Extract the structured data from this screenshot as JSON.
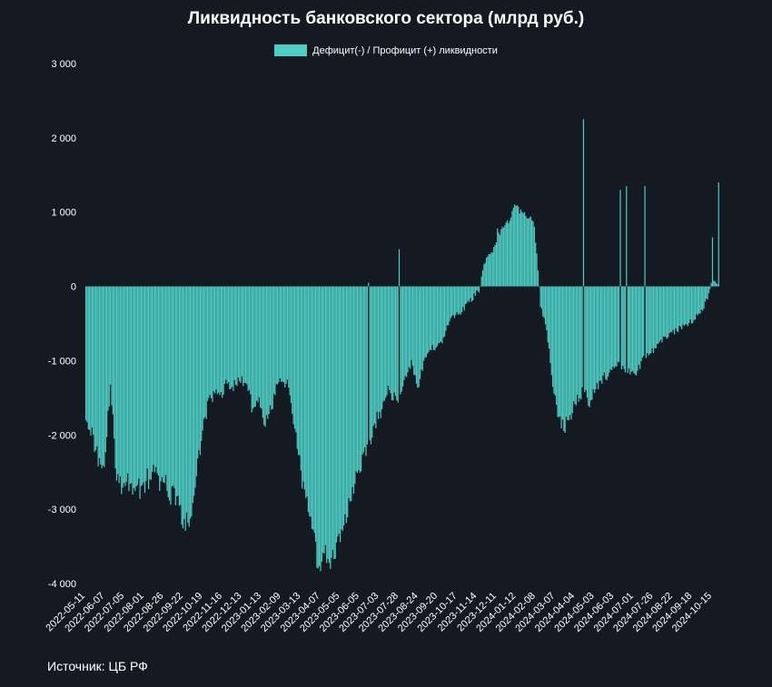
{
  "chart_data": {
    "type": "bar",
    "title": "Ликвидность банковского сектора (млрд руб.)",
    "legend": {
      "label": "Дефицит(-) / Профицит (+) ликвидности",
      "placement": "top-center"
    },
    "ylim": [
      -4000,
      3000
    ],
    "yticks": [
      "3 000",
      "2 000",
      "1 000",
      "0",
      "-1 000",
      "-2 000",
      "-3 000",
      "-4 000"
    ],
    "ytick_values": [
      3000,
      2000,
      1000,
      0,
      -1000,
      -2000,
      -3000,
      -4000
    ],
    "x_tick_labels": [
      "2022-05-11",
      "2022-06-07",
      "2022-07-05",
      "2022-08-01",
      "2022-08-26",
      "2022-09-22",
      "2022-10-19",
      "2022-11-16",
      "2022-12-13",
      "2023-01-13",
      "2023-02-09",
      "2023-03-13",
      "2023-04-07",
      "2023-05-05",
      "2023-06-05",
      "2023-07-03",
      "2023-07-28",
      "2023-08-24",
      "2023-09-20",
      "2023-10-17",
      "2023-11-14",
      "2023-12-11",
      "2024-01-12",
      "2024-02-08",
      "2024-03-07",
      "2024-04-04",
      "2024-05-03",
      "2024-06-03",
      "2024-07-01",
      "2024-07-26",
      "2024-08-22",
      "2024-09-18",
      "2024-10-15"
    ],
    "grid": false,
    "color": "#4ecdc4",
    "series": [
      {
        "values": [
          -1700,
          -2000,
          -2300,
          -2450,
          -1300,
          -2600,
          -2750,
          -2650,
          -2700,
          -2700,
          -2600,
          -2500,
          -2650,
          -2700,
          -2800,
          -2800,
          -3300,
          -3100,
          -2600,
          -1900,
          -1550,
          -1450,
          -1450,
          -1300,
          -1350,
          -1250,
          -1300,
          -1600,
          -1500,
          -1850,
          -1700,
          -1350,
          -1250,
          -1350,
          -1850,
          -2500,
          -3000,
          -3450,
          -3750,
          -3600,
          -3700,
          -3550,
          -3200,
          -2800,
          -2550,
          -2350,
          -2200,
          -1850,
          -1700,
          -1400,
          -1500,
          -1500,
          -1250,
          -1000,
          -1350,
          -1050,
          -850,
          -800,
          -750,
          -500,
          -400,
          -350,
          -250,
          -150,
          -50,
          350,
          450,
          650,
          800,
          900,
          1100,
          1000,
          950,
          850,
          -250,
          -600,
          -1300,
          -1800,
          -1900,
          -1700,
          -1500,
          -1400,
          -1550,
          -1350,
          -1250,
          -1200,
          -1100,
          -1050,
          -1150,
          -1200,
          -1100,
          -950,
          -900,
          -800,
          -700,
          -650,
          -600,
          -550,
          -500,
          -450,
          -350,
          -200,
          100,
          50
        ],
        "spikes": [
          {
            "index": 46,
            "value": 50
          },
          {
            "index": 51,
            "value": 500
          },
          {
            "index": 67,
            "value": 780
          },
          {
            "index": 81,
            "value": 2250
          },
          {
            "index": 87,
            "value": 1300
          },
          {
            "index": 88,
            "value": 1350
          },
          {
            "index": 91,
            "value": 1350
          },
          {
            "index": 102,
            "value": 660
          },
          {
            "index": 103,
            "value": 280
          },
          {
            "index": 104,
            "value": 1400
          }
        ]
      }
    ]
  },
  "source": "Источник: ЦБ РФ"
}
